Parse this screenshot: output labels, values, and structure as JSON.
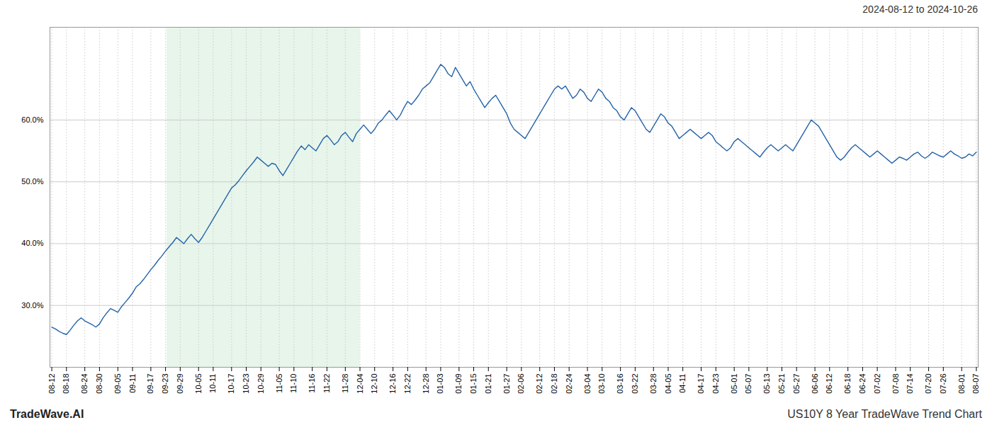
{
  "chart_data": {
    "type": "line",
    "title": "2024-08-12 to 2024-10-26",
    "annotations": [
      "TradeWave.AI",
      "US10Y 8 Year TradeWave Trend Chart"
    ],
    "color": "#2563a8",
    "grid": true,
    "ylim": [
      20,
      75
    ],
    "yticks": [
      {
        "value": 30.0,
        "label": "30.0%"
      },
      {
        "value": 40.0,
        "label": "40.0%"
      },
      {
        "value": 50.0,
        "label": "50.0%"
      },
      {
        "value": 60.0,
        "label": "60.0%"
      }
    ],
    "shaded_region": {
      "start": 31.372,
      "end": 83.996,
      "color": "#d4edda"
    },
    "categories": [
      "08-12",
      null,
      null,
      null,
      "08-18",
      null,
      null,
      null,
      null,
      "08-24",
      null,
      null,
      null,
      "08-30",
      null,
      null,
      null,
      null,
      "09-05",
      null,
      null,
      null,
      "09-11",
      null,
      null,
      null,
      null,
      "09-17",
      null,
      null,
      null,
      "09-23",
      null,
      null,
      null,
      "09-29",
      null,
      null,
      null,
      null,
      "10-05",
      null,
      null,
      null,
      "10-11",
      null,
      null,
      null,
      null,
      "10-17",
      null,
      null,
      null,
      "10-23",
      null,
      null,
      null,
      "10-29",
      null,
      null,
      null,
      null,
      "11-05",
      null,
      null,
      null,
      "11-10",
      null,
      null,
      null,
      null,
      "11-16",
      null,
      null,
      null,
      "11-22",
      null,
      null,
      null,
      null,
      "11-28",
      null,
      null,
      null,
      "12-04",
      null,
      null,
      null,
      "12-10",
      null,
      null,
      null,
      null,
      "12-16",
      null,
      null,
      null,
      "12-22",
      null,
      null,
      null,
      null,
      "12-28",
      null,
      null,
      null,
      "01-03",
      null,
      null,
      null,
      null,
      "01-09",
      null,
      null,
      null,
      "01-15",
      null,
      null,
      null,
      "01-21",
      null,
      null,
      null,
      null,
      "01-27",
      null,
      null,
      null,
      "02-06",
      null,
      null,
      null,
      null,
      "02-12",
      null,
      null,
      null,
      "02-18",
      null,
      null,
      null,
      "02-24",
      null,
      null,
      null,
      null,
      "03-04",
      null,
      null,
      null,
      "03-10",
      null,
      null,
      null,
      null,
      "03-16",
      null,
      null,
      null,
      "03-22",
      null,
      null,
      null,
      null,
      "03-28",
      null,
      null,
      null,
      "04-05",
      null,
      null,
      null,
      "04-11",
      null,
      null,
      null,
      null,
      "04-17",
      null,
      null,
      null,
      "04-23",
      null,
      null,
      null,
      null,
      "05-01",
      null,
      null,
      null,
      "05-07",
      null,
      null,
      null,
      null,
      "05-13",
      null,
      null,
      null,
      "05-21",
      null,
      null,
      null,
      "05-27",
      null,
      null,
      null,
      null,
      "06-06",
      null,
      null,
      null,
      "06-12",
      null,
      null,
      null,
      null,
      "06-18",
      null,
      null,
      null,
      "06-24",
      null,
      null,
      null,
      "07-02",
      null,
      null,
      null,
      null,
      "07-08",
      null,
      null,
      null,
      "07-14",
      null,
      null,
      null,
      null,
      "07-20",
      null,
      null,
      null,
      "07-26",
      null,
      null,
      null,
      null,
      "08-01",
      null,
      null,
      null,
      "08-07"
    ],
    "values": [
      26.5,
      26.2,
      25.8,
      25.5,
      25.3,
      26.0,
      26.8,
      27.5,
      28.0,
      27.5,
      27.2,
      26.9,
      26.5,
      27.0,
      28.0,
      28.8,
      29.5,
      29.2,
      28.9,
      29.8,
      30.5,
      31.2,
      32.0,
      33.0,
      33.5,
      34.2,
      35.0,
      35.8,
      36.5,
      37.3,
      38.0,
      38.8,
      39.5,
      40.2,
      41.0,
      40.5,
      40.0,
      40.8,
      41.5,
      40.8,
      40.2,
      41.0,
      42.0,
      43.0,
      44.0,
      45.0,
      46.0,
      47.0,
      48.0,
      49.0,
      49.5,
      50.2,
      51.0,
      51.8,
      52.5,
      53.2,
      54.0,
      53.5,
      53.0,
      52.5,
      53.0,
      52.8,
      51.8,
      51.0,
      52.0,
      53.0,
      54.0,
      55.0,
      55.8,
      55.2,
      56.0,
      55.5,
      55.0,
      56.0,
      57.0,
      57.5,
      56.8,
      56.0,
      56.5,
      57.5,
      58.0,
      57.2,
      56.5,
      57.8,
      58.5,
      59.2,
      58.5,
      57.8,
      58.5,
      59.5,
      60.0,
      60.8,
      61.5,
      60.8,
      60.0,
      60.8,
      62.0,
      63.0,
      62.5,
      63.2,
      64.0,
      65.0,
      65.5,
      66.0,
      67.0,
      68.0,
      69.0,
      68.5,
      67.5,
      67.0,
      68.5,
      67.5,
      66.5,
      65.5,
      66.2,
      65.0,
      64.0,
      63.0,
      62.0,
      62.8,
      63.5,
      64.0,
      63.0,
      62.0,
      61.0,
      59.5,
      58.5,
      58.0,
      57.5,
      57.0,
      58.0,
      59.0,
      60.0,
      61.0,
      62.0,
      63.0,
      64.0,
      65.0,
      65.5,
      65.0,
      65.5,
      64.5,
      63.5,
      64.0,
      65.0,
      64.5,
      63.5,
      63.0,
      64.0,
      65.0,
      64.5,
      63.5,
      63.0,
      62.0,
      61.5,
      60.5,
      60.0,
      61.0,
      62.0,
      61.5,
      60.5,
      59.5,
      58.5,
      58.0,
      59.0,
      60.0,
      61.0,
      60.5,
      59.5,
      59.0,
      58.0,
      57.0,
      57.5,
      58.0,
      58.5,
      58.0,
      57.5,
      57.0,
      57.5,
      58.0,
      57.5,
      56.5,
      56.0,
      55.5,
      55.0,
      55.5,
      56.5,
      57.0,
      56.5,
      56.0,
      55.5,
      55.0,
      54.5,
      54.0,
      54.8,
      55.5,
      56.0,
      55.5,
      55.0,
      55.5,
      56.0,
      55.5,
      55.0,
      56.0,
      57.0,
      58.0,
      59.0,
      60.0,
      59.5,
      59.0,
      58.0,
      57.0,
      56.0,
      55.0,
      54.0,
      53.5,
      54.0,
      54.8,
      55.5,
      56.0,
      55.5,
      55.0,
      54.5,
      54.0,
      54.5,
      55.0,
      54.5,
      54.0,
      53.5,
      53.0,
      53.5,
      54.0,
      53.8,
      53.5,
      54.0,
      54.5,
      54.8,
      54.2,
      53.8,
      54.2,
      54.8,
      54.5,
      54.2,
      54.0,
      54.5,
      55.0,
      54.5,
      54.2,
      53.8,
      54.0,
      54.5,
      54.2,
      54.8
    ]
  }
}
